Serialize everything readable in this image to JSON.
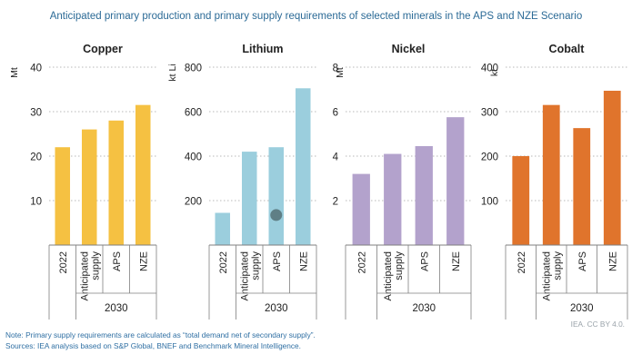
{
  "figure": {
    "title": "Anticipated primary production and primary supply requirements of selected minerals in the APS and NZE Scenario",
    "note": "Note: Primary supply requirements are calculated as “total demand net of secondary supply”.",
    "sources": "Sources: IEA analysis based on S&P Global, BNEF and Benchmark Mineral Intelligence.",
    "credit": "IEA. CC BY 4.0."
  },
  "colors": {
    "copper": "#f5c142",
    "lithium": "#9bcedd",
    "nickel": "#b3a2cc",
    "cobalt": "#e0742c",
    "marker": "#5f7f86",
    "grid": "#b8b8b8",
    "axis_line": "#7f7f7f",
    "text": "#222222"
  },
  "chart_data": [
    {
      "type": "bar",
      "title": "Copper",
      "ylabel": "Mt",
      "ylim": [
        0,
        40
      ],
      "yticks": [
        10,
        20,
        30,
        40
      ],
      "ytick_labels": [
        "10",
        "20",
        "30",
        "40"
      ],
      "grid": true,
      "categories": [
        "2022",
        "Anticipated\nsupply",
        "APS",
        "NZE"
      ],
      "group_label": "2030",
      "group_span": [
        1,
        3
      ],
      "values": [
        22,
        26,
        28,
        31.5
      ],
      "color": "copper"
    },
    {
      "type": "bar",
      "title": "Lithium",
      "ylabel": "kt Li",
      "ylim": [
        0,
        800
      ],
      "yticks": [
        200,
        400,
        600,
        800
      ],
      "ytick_labels": [
        "200",
        "400",
        "600",
        "800"
      ],
      "grid": true,
      "categories": [
        "2022",
        "Anticipated\nsupply",
        "APS",
        "NZE"
      ],
      "group_label": "2030",
      "group_span": [
        1,
        3
      ],
      "values": [
        145,
        420,
        440,
        705
      ],
      "marker": {
        "category": "APS",
        "value": 135
      },
      "color": "lithium"
    },
    {
      "type": "bar",
      "title": "Nickel",
      "ylabel": "Mt",
      "ylim": [
        0,
        8
      ],
      "yticks": [
        2,
        4,
        6,
        8
      ],
      "ytick_labels": [
        "2",
        "4",
        "6",
        "8"
      ],
      "grid": true,
      "categories": [
        "2022",
        "Anticipated\nsupply",
        "APS",
        "NZE"
      ],
      "group_label": "2030",
      "group_span": [
        1,
        3
      ],
      "values": [
        3.2,
        4.1,
        4.45,
        5.75
      ],
      "color": "nickel"
    },
    {
      "type": "bar",
      "title": "Cobalt",
      "ylabel": "kt",
      "ylim": [
        0,
        400
      ],
      "yticks": [
        100,
        200,
        300,
        400
      ],
      "ytick_labels": [
        "100",
        "200",
        "300",
        "400"
      ],
      "grid": true,
      "categories": [
        "2022",
        "Anticipated\nsupply",
        "APS",
        "NZE"
      ],
      "group_label": "2030",
      "group_span": [
        1,
        3
      ],
      "values": [
        200,
        315,
        263,
        347
      ],
      "color": "cobalt"
    }
  ]
}
